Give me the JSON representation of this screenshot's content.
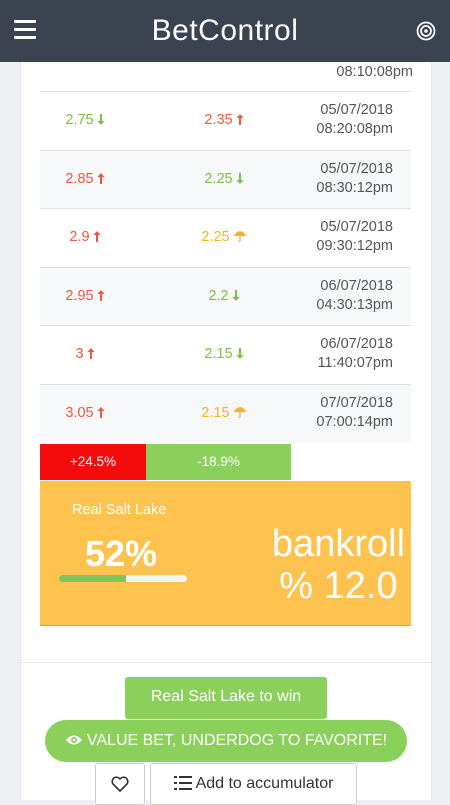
{
  "app": {
    "title": "BetControl"
  },
  "odds_table": {
    "first_row_time": "08:10:08pm",
    "rows": [
      {
        "home": "2.75",
        "home_trend": "down",
        "away": "2.35",
        "away_trend": "up",
        "date": "05/07/2018",
        "time": "08:20:08pm"
      },
      {
        "home": "2.85",
        "home_trend": "up",
        "away": "2.25",
        "away_trend": "down",
        "date": "05/07/2018",
        "time": "08:30:12pm"
      },
      {
        "home": "2.9",
        "home_trend": "up",
        "away": "2.25",
        "away_trend": "umbrella",
        "date": "05/07/2018",
        "time": "09:30:12pm"
      },
      {
        "home": "2.95",
        "home_trend": "up",
        "away": "2.2",
        "away_trend": "down",
        "date": "06/07/2018",
        "time": "04:30:13pm"
      },
      {
        "home": "3",
        "home_trend": "up",
        "away": "2.15",
        "away_trend": "down",
        "date": "06/07/2018",
        "time": "11:40:07pm"
      },
      {
        "home": "3.05",
        "home_trend": "up",
        "away": "2.15",
        "away_trend": "umbrella",
        "date": "07/07/2018",
        "time": "07:00:14pm"
      }
    ]
  },
  "change_bar": {
    "home_change": "+24.5%",
    "away_change": "-18.9%"
  },
  "summary": {
    "team": "Real Salt Lake",
    "probability": "52%",
    "progress": 0.52,
    "bankroll_label": "bankroll",
    "bankroll_value": "% 12.0"
  },
  "actions": {
    "win_label": "Real Salt Lake to win",
    "value_bet_label": "VALUE BET, UNDERDOG TO FAVORITE!",
    "accumulator_label": "Add to accumulator"
  },
  "colors": {
    "up": "#f2563b",
    "down": "#78c142",
    "umbrella": "#f0b429",
    "summary_bg": "#fec24f",
    "btn_green": "#8bd05b"
  }
}
